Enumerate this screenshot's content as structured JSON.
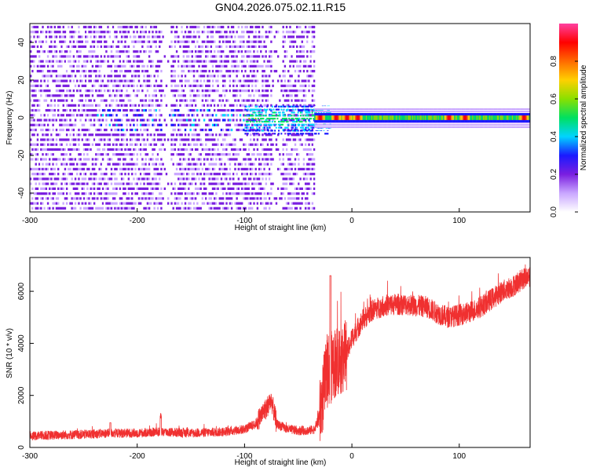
{
  "title": "GN04.2026.075.02.11.R15",
  "chart_data": [
    {
      "type": "heatmap",
      "xlabel": "Height of straight line (km)",
      "ylabel": "Frequency (Hz)",
      "xlim": [
        -300,
        166
      ],
      "ylim": [
        -50,
        50
      ],
      "xticks": [
        -300,
        -200,
        -100,
        0,
        100
      ],
      "yticks": [
        -40,
        -20,
        0,
        20,
        40
      ],
      "colorbar": {
        "label": "Normalized spectral amplitude",
        "range": [
          0,
          1
        ],
        "ticks": [
          "0.0",
          "0.2",
          "0.4",
          "0.6",
          "0.8"
        ],
        "colors": [
          "#ffffff",
          "#c9a6ff",
          "#7a1ee0",
          "#1a1aff",
          "#00d4ff",
          "#00e060",
          "#8ae000",
          "#ffd000",
          "#ff6a00",
          "#ff0000",
          "#ff40a0"
        ]
      },
      "description_points": {
        "noise_band_heights": [
          -300,
          -35
        ],
        "signal_band_heights": [
          -35,
          166
        ],
        "signal_frequency_hz": 0,
        "peak_heights_km": [
          -30,
          -15,
          -5,
          5,
          90,
          105,
          160
        ]
      }
    },
    {
      "type": "line",
      "xlabel": "Height of straight line (km)",
      "ylabel": "SNR (10 * v/v)",
      "xlim": [
        -300,
        166
      ],
      "ylim": [
        0,
        7300
      ],
      "xticks": [
        -300,
        -200,
        -100,
        0,
        100
      ],
      "yticks": [
        0,
        2000,
        4000,
        6000
      ],
      "color": "#f03030",
      "series": [
        {
          "name": "SNR",
          "x": [
            -300,
            -250,
            -225,
            -200,
            -178,
            -150,
            -120,
            -100,
            -90,
            -80,
            -75,
            -70,
            -60,
            -50,
            -40,
            -35,
            -30,
            -25,
            -22,
            -20,
            -18,
            -15,
            -10,
            -5,
            0,
            10,
            20,
            30,
            40,
            50,
            60,
            70,
            80,
            90,
            100,
            110,
            120,
            130,
            140,
            150,
            160,
            166
          ],
          "y": [
            450,
            500,
            550,
            550,
            600,
            550,
            600,
            700,
            900,
            1500,
            1800,
            900,
            700,
            650,
            650,
            700,
            1200,
            2500,
            3000,
            3000,
            3200,
            3300,
            3400,
            3600,
            4200,
            4900,
            5300,
            5450,
            5500,
            5500,
            5450,
            5400,
            5150,
            5000,
            5100,
            5200,
            5400,
            5700,
            6000,
            6200,
            6500,
            6600
          ]
        }
      ]
    }
  ]
}
